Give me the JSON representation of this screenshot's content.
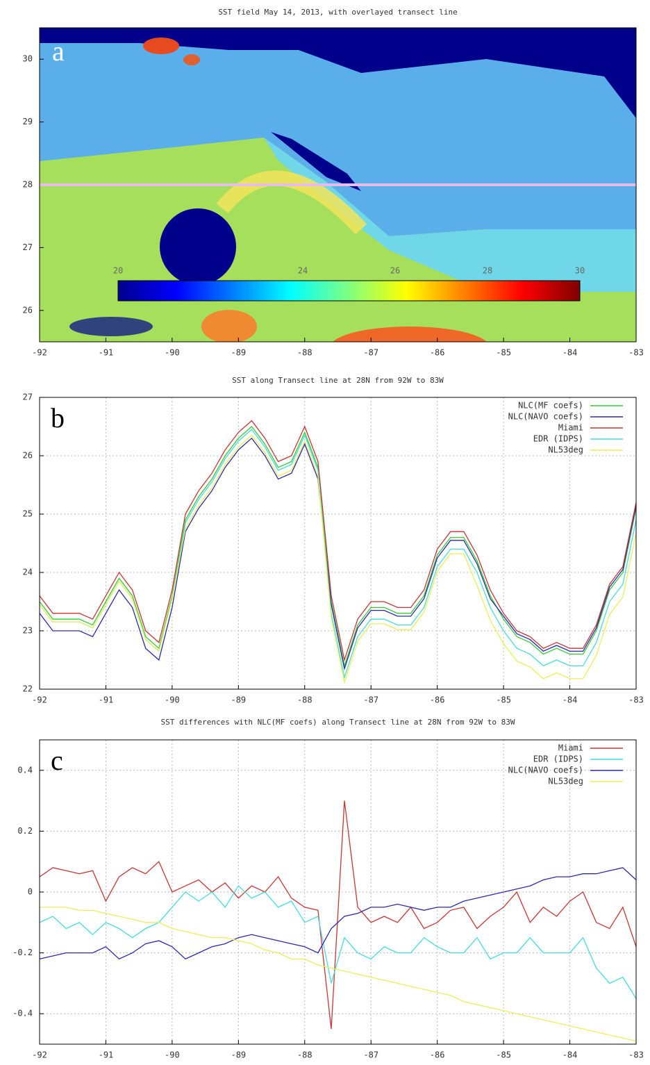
{
  "chart_data": [
    {
      "type": "map",
      "title": "SST field May 14, 2013, with overlayed transect line",
      "label": "a",
      "xlim": [
        -92,
        -83
      ],
      "xticks": [
        -92,
        -91,
        -90,
        -89,
        -88,
        -87,
        -86,
        -85,
        -84,
        -83
      ],
      "ylim": [
        25.5,
        30.5
      ],
      "yticks": [
        26,
        27,
        28,
        29,
        30
      ],
      "transect": 28,
      "transect_color": "#e8bce8",
      "clim": [
        20,
        30
      ],
      "colorbar_ticks": [
        20,
        24,
        26,
        28,
        30
      ]
    },
    {
      "type": "line",
      "title": "SST along Transect line at 28N from 92W to 83W",
      "label": "b",
      "xlim": [
        -92,
        -83
      ],
      "xticks": [
        -92,
        -91,
        -90,
        -89,
        -88,
        -87,
        -86,
        -85,
        -84,
        -83
      ],
      "ylim": [
        22,
        27
      ],
      "yticks": [
        22,
        23,
        24,
        25,
        26,
        27
      ],
      "grid": true,
      "legend": "top-right",
      "x": [
        -92,
        -91.8,
        -91.6,
        -91.4,
        -91.2,
        -91,
        -90.8,
        -90.6,
        -90.4,
        -90.2,
        -90,
        -89.8,
        -89.6,
        -89.4,
        -89.2,
        -89,
        -88.8,
        -88.6,
        -88.4,
        -88.2,
        -88,
        -87.8,
        -87.6,
        -87.4,
        -87.2,
        -87,
        -86.8,
        -86.6,
        -86.4,
        -86.2,
        -86,
        -85.8,
        -85.6,
        -85.4,
        -85.2,
        -85,
        -84.8,
        -84.6,
        -84.4,
        -84.2,
        -84,
        -83.8,
        -83.6,
        -83.4,
        -83.2,
        -83
      ],
      "series": [
        {
          "name": "NLC(MF coefs)",
          "color": "#33cc33",
          "values": [
            23.5,
            23.2,
            23.2,
            23.2,
            23.1,
            23.5,
            23.9,
            23.6,
            22.9,
            22.7,
            23.6,
            24.9,
            25.3,
            25.6,
            26.0,
            26.3,
            26.5,
            26.2,
            25.8,
            25.9,
            26.4,
            25.8,
            23.5,
            22.4,
            23.1,
            23.4,
            23.4,
            23.3,
            23.3,
            23.6,
            24.3,
            24.6,
            24.6,
            24.2,
            23.6,
            23.2,
            22.9,
            22.8,
            22.6,
            22.7,
            22.6,
            22.6,
            23.0,
            23.7,
            24.0,
            25.1
          ]
        },
        {
          "name": "NLC(NAVO coefs)",
          "color": "#2a2ab0",
          "values": [
            23.3,
            23.0,
            23.0,
            23.0,
            22.9,
            23.3,
            23.7,
            23.4,
            22.7,
            22.5,
            23.4,
            24.7,
            25.1,
            25.4,
            25.8,
            26.1,
            26.3,
            26.0,
            25.6,
            25.7,
            26.2,
            25.6,
            23.45,
            22.35,
            23.05,
            23.35,
            23.35,
            23.25,
            23.25,
            23.55,
            24.25,
            24.55,
            24.55,
            24.15,
            23.55,
            23.25,
            22.95,
            22.85,
            22.65,
            22.75,
            22.65,
            22.65,
            23.05,
            23.75,
            24.05,
            25.15
          ]
        },
        {
          "name": "Miami",
          "color": "#cc3333",
          "values": [
            23.6,
            23.3,
            23.3,
            23.3,
            23.2,
            23.6,
            24.0,
            23.7,
            23.0,
            22.8,
            23.7,
            25.0,
            25.4,
            25.7,
            26.1,
            26.4,
            26.6,
            26.3,
            25.9,
            26.0,
            26.5,
            25.9,
            23.6,
            22.5,
            23.2,
            23.5,
            23.5,
            23.4,
            23.4,
            23.7,
            24.4,
            24.7,
            24.7,
            24.3,
            23.7,
            23.3,
            23.0,
            22.9,
            22.7,
            22.8,
            22.7,
            22.7,
            23.1,
            23.8,
            24.1,
            25.2
          ]
        },
        {
          "name": "EDR (IDPS)",
          "color": "#44dddd",
          "values": [
            23.45,
            23.15,
            23.15,
            23.15,
            23.05,
            23.45,
            23.85,
            23.55,
            22.85,
            22.65,
            23.55,
            24.85,
            25.25,
            25.55,
            25.95,
            26.25,
            26.45,
            26.15,
            25.75,
            25.85,
            26.35,
            25.75,
            23.3,
            22.2,
            22.9,
            23.2,
            23.2,
            23.1,
            23.1,
            23.4,
            24.1,
            24.4,
            24.4,
            24.0,
            23.4,
            23.0,
            22.7,
            22.6,
            22.4,
            22.5,
            22.4,
            22.4,
            22.8,
            23.5,
            23.8,
            24.9
          ]
        },
        {
          "name": "NL53deg",
          "color": "#eeee55",
          "values": [
            23.45,
            23.15,
            23.15,
            23.15,
            23.05,
            23.45,
            23.85,
            23.55,
            22.85,
            22.65,
            23.55,
            24.75,
            25.15,
            25.45,
            25.85,
            26.15,
            26.35,
            26.05,
            25.65,
            25.75,
            26.25,
            25.65,
            23.22,
            22.12,
            22.82,
            23.12,
            23.12,
            23.02,
            23.02,
            23.32,
            24.02,
            24.32,
            24.32,
            23.78,
            23.18,
            22.78,
            22.48,
            22.38,
            22.18,
            22.28,
            22.18,
            22.18,
            22.58,
            23.28,
            23.58,
            24.68
          ]
        }
      ]
    },
    {
      "type": "line",
      "title": "SST differences with NLC(MF coefs) along Transect line at 28N from 92W to 83W",
      "label": "c",
      "xlim": [
        -92,
        -83
      ],
      "xticks": [
        -92,
        -91,
        -90,
        -89,
        -88,
        -87,
        -86,
        -85,
        -84,
        -83
      ],
      "ylim": [
        -0.5,
        0.5
      ],
      "yticks": [
        -0.4,
        -0.2,
        0,
        0.2,
        0.4
      ],
      "grid": true,
      "legend": "top-right",
      "x": [
        -92,
        -91.8,
        -91.6,
        -91.4,
        -91.2,
        -91,
        -90.8,
        -90.6,
        -90.4,
        -90.2,
        -90,
        -89.8,
        -89.6,
        -89.4,
        -89.2,
        -89,
        -88.8,
        -88.6,
        -88.4,
        -88.2,
        -88,
        -87.8,
        -87.6,
        -87.4,
        -87.2,
        -87,
        -86.8,
        -86.6,
        -86.4,
        -86.2,
        -86,
        -85.8,
        -85.6,
        -85.4,
        -85.2,
        -85,
        -84.8,
        -84.6,
        -84.4,
        -84.2,
        -84,
        -83.8,
        -83.6,
        -83.4,
        -83.2,
        -83
      ],
      "series": [
        {
          "name": "Miami",
          "color": "#cc3333",
          "values": [
            0.05,
            0.08,
            0.07,
            0.06,
            0.07,
            -0.03,
            0.05,
            0.08,
            0.06,
            0.1,
            0.0,
            0.02,
            0.04,
            0.0,
            0.03,
            -0.02,
            0.02,
            0.0,
            0.05,
            -0.02,
            -0.05,
            -0.06,
            -0.45,
            0.3,
            -0.05,
            -0.1,
            -0.08,
            -0.1,
            -0.05,
            -0.12,
            -0.1,
            -0.06,
            -0.05,
            -0.12,
            -0.08,
            -0.05,
            0.0,
            -0.1,
            -0.05,
            -0.08,
            -0.03,
            0.0,
            -0.1,
            -0.12,
            -0.05,
            -0.18
          ]
        },
        {
          "name": "EDR (IDPS)",
          "color": "#44dddd",
          "values": [
            -0.1,
            -0.08,
            -0.12,
            -0.1,
            -0.14,
            -0.1,
            -0.12,
            -0.15,
            -0.12,
            -0.1,
            -0.05,
            0.0,
            -0.03,
            0.0,
            -0.05,
            0.02,
            -0.02,
            0.0,
            -0.05,
            -0.03,
            -0.1,
            -0.08,
            -0.3,
            -0.15,
            -0.2,
            -0.22,
            -0.18,
            -0.2,
            -0.2,
            -0.15,
            -0.18,
            -0.2,
            -0.2,
            -0.15,
            -0.22,
            -0.2,
            -0.2,
            -0.15,
            -0.2,
            -0.2,
            -0.2,
            -0.15,
            -0.25,
            -0.3,
            -0.28,
            -0.35
          ]
        },
        {
          "name": "NLC(NAVO coefs)",
          "color": "#2a2ab0",
          "values": [
            -0.22,
            -0.21,
            -0.2,
            -0.2,
            -0.2,
            -0.18,
            -0.22,
            -0.2,
            -0.17,
            -0.16,
            -0.18,
            -0.22,
            -0.2,
            -0.18,
            -0.17,
            -0.15,
            -0.14,
            -0.15,
            -0.16,
            -0.17,
            -0.18,
            -0.2,
            -0.12,
            -0.08,
            -0.07,
            -0.05,
            -0.05,
            -0.04,
            -0.05,
            -0.06,
            -0.05,
            -0.05,
            -0.03,
            -0.02,
            -0.01,
            0.0,
            0.01,
            0.02,
            0.04,
            0.05,
            0.05,
            0.06,
            0.06,
            0.07,
            0.08,
            0.04
          ]
        },
        {
          "name": "NL53deg",
          "color": "#eeee55",
          "values": [
            -0.05,
            -0.05,
            -0.05,
            -0.06,
            -0.06,
            -0.07,
            -0.08,
            -0.09,
            -0.1,
            -0.1,
            -0.12,
            -0.13,
            -0.14,
            -0.15,
            -0.15,
            -0.16,
            -0.17,
            -0.19,
            -0.2,
            -0.22,
            -0.22,
            -0.24,
            -0.25,
            -0.26,
            -0.27,
            -0.28,
            -0.29,
            -0.3,
            -0.31,
            -0.32,
            -0.33,
            -0.34,
            -0.36,
            -0.37,
            -0.38,
            -0.39,
            -0.4,
            -0.41,
            -0.42,
            -0.43,
            -0.44,
            -0.45,
            -0.46,
            -0.47,
            -0.48,
            -0.49
          ]
        }
      ]
    }
  ]
}
